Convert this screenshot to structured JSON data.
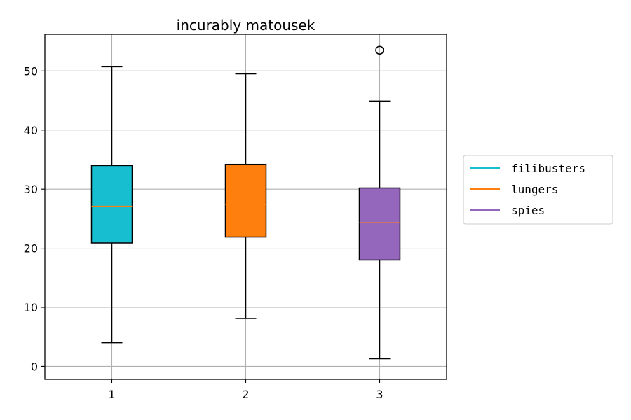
{
  "chart_data": {
    "type": "box",
    "title": "incurably matousek",
    "xlabel": "",
    "ylabel": "",
    "categories": [
      "1",
      "2",
      "3"
    ],
    "ylim": [
      -2.2,
      56.2
    ],
    "yticks": [
      0,
      10,
      20,
      30,
      40,
      50
    ],
    "grid": true,
    "legend_position": "right-outside",
    "median_color": "#ff7f0e",
    "series": [
      {
        "name": "filibusters",
        "color": "#17becf",
        "whisker_low": 4.0,
        "q1": 20.9,
        "median": 27.1,
        "q3": 34.0,
        "whisker_high": 50.7,
        "outliers": []
      },
      {
        "name": "lungers",
        "color": "#ff7f0e",
        "whisker_low": 8.1,
        "q1": 21.9,
        "median": 27.4,
        "q3": 34.2,
        "whisker_high": 49.5,
        "outliers": []
      },
      {
        "name": "spies",
        "color": "#9467bd",
        "whisker_low": 1.3,
        "q1": 18.0,
        "median": 24.3,
        "q3": 30.2,
        "whisker_high": 44.9,
        "outliers": [
          53.5
        ]
      }
    ]
  }
}
